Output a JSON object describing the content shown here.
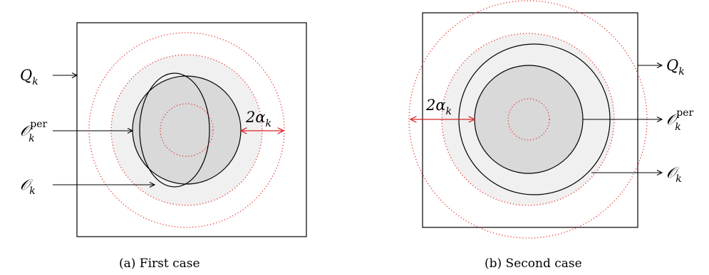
{
  "panels": [
    {
      "caption": "(a) First case",
      "labels": {
        "q": {
          "base": "Q",
          "sub": "k"
        },
        "o_per": {
          "base": "𝒪",
          "sub": "k",
          "sup": "per"
        },
        "o": {
          "base": "𝒪",
          "sub": "k"
        },
        "alpha": {
          "base": "2α",
          "sub": "k"
        }
      }
    },
    {
      "caption": "(b) Second case",
      "labels": {
        "q": {
          "base": "Q",
          "sub": "k"
        },
        "o_per": {
          "base": "𝒪",
          "sub": "k",
          "sup": "per"
        },
        "o": {
          "base": "𝒪",
          "sub": "k"
        },
        "alpha": {
          "base": "2α",
          "sub": "k"
        }
      }
    }
  ],
  "colors": {
    "shade_light": "#f0f0f0",
    "shade_dark": "#d9d9d9",
    "dotted_red": "#e8302a",
    "arrow_red": "#d8232a",
    "stroke": "#000000"
  }
}
